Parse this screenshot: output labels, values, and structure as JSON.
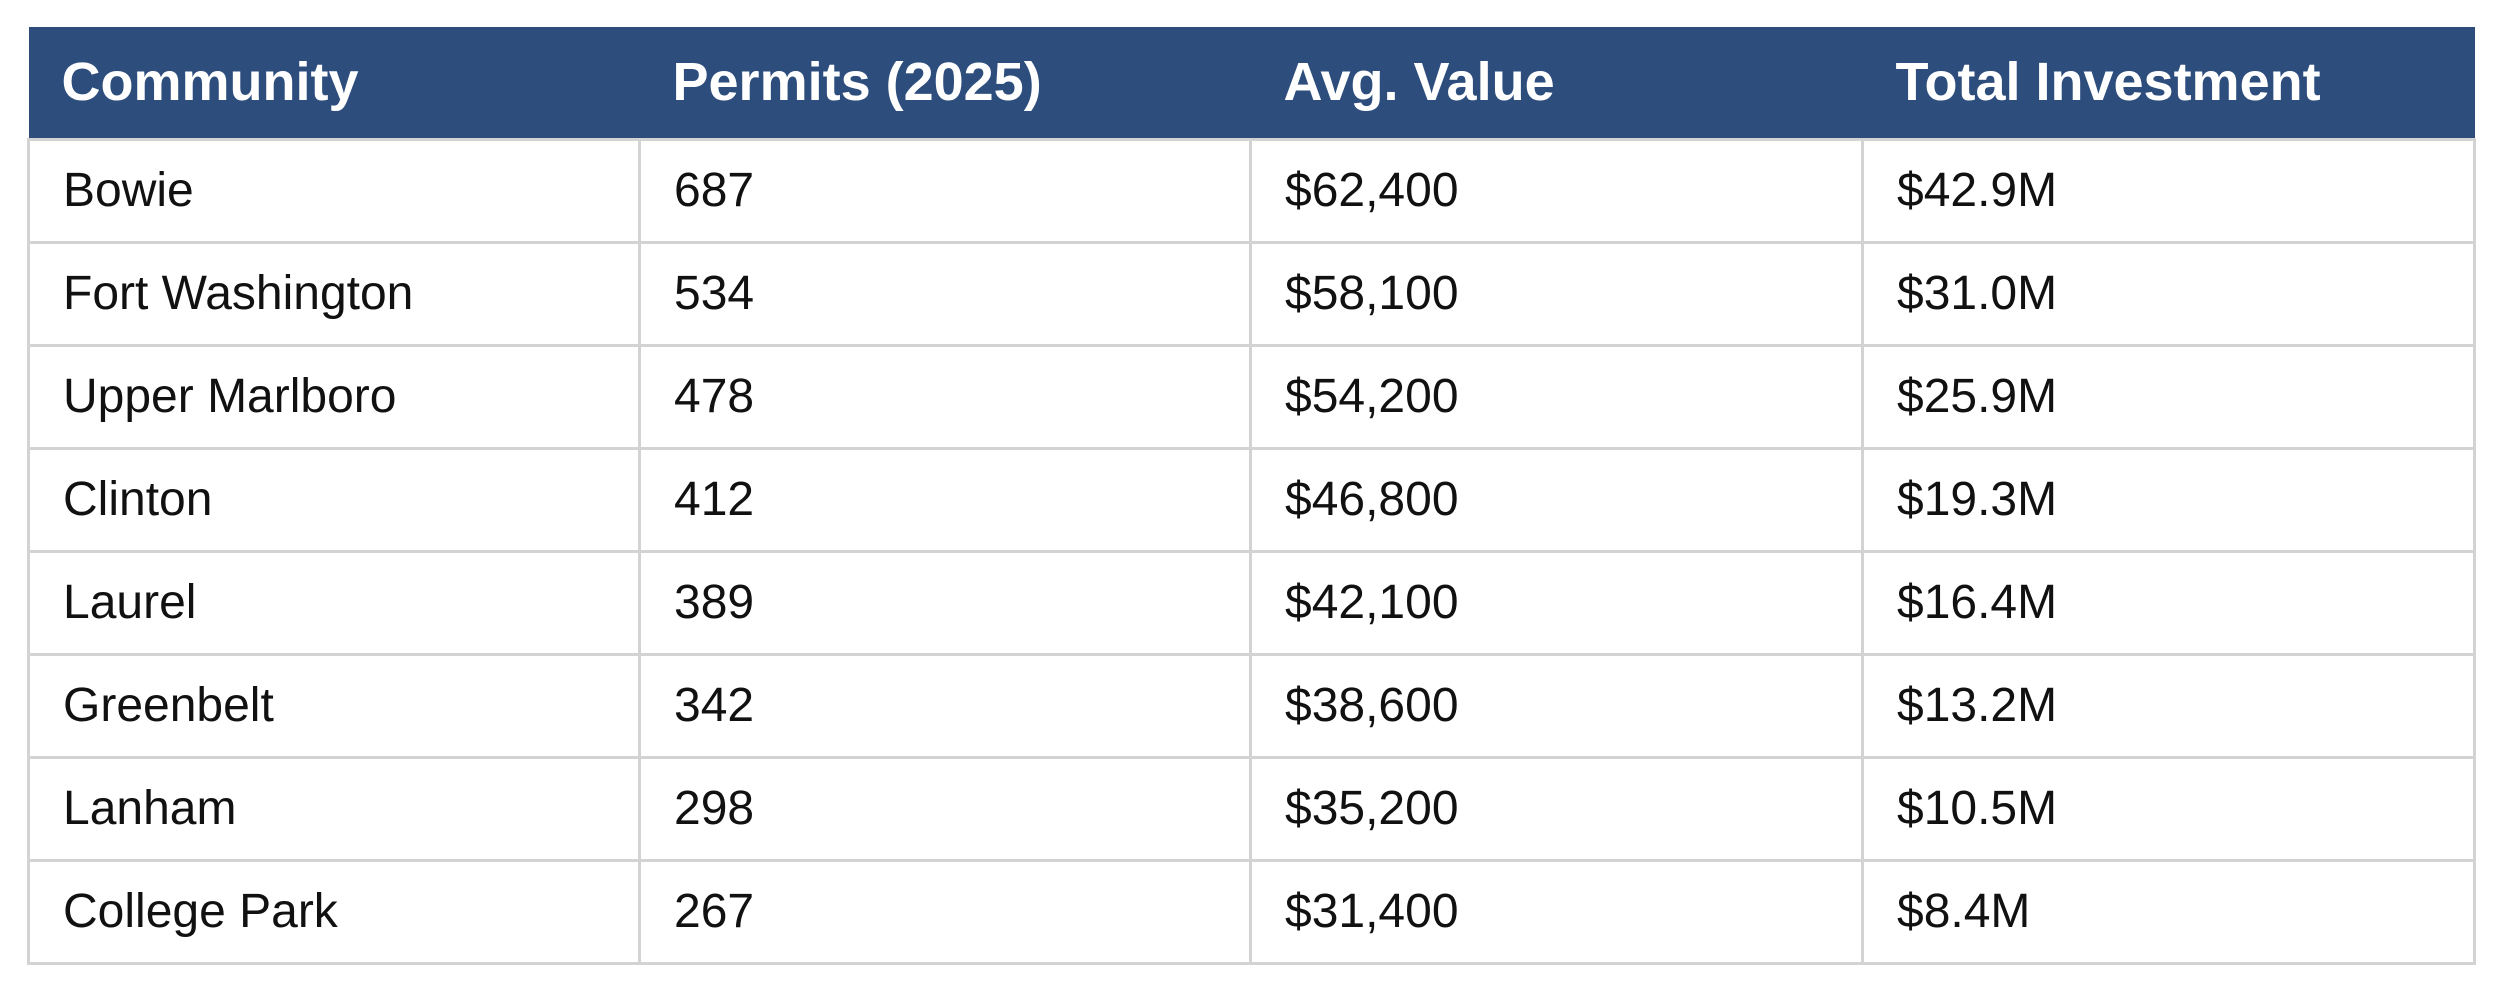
{
  "table": {
    "headers": [
      "Community",
      "Permits (2025)",
      "Avg. Value",
      "Total Investment"
    ],
    "rows": [
      [
        "Bowie",
        "687",
        "$62,400",
        "$42.9M"
      ],
      [
        "Fort Washington",
        "534",
        "$58,100",
        "$31.0M"
      ],
      [
        "Upper Marlboro",
        "478",
        "$54,200",
        "$25.9M"
      ],
      [
        "Clinton",
        "412",
        "$46,800",
        "$19.3M"
      ],
      [
        "Laurel",
        "389",
        "$42,100",
        "$16.4M"
      ],
      [
        "Greenbelt",
        "342",
        "$38,600",
        "$13.2M"
      ],
      [
        "Lanham",
        "298",
        "$35,200",
        "$10.5M"
      ],
      [
        "College Park",
        "267",
        "$31,400",
        "$8.4M"
      ]
    ]
  },
  "colors": {
    "header_background": "#2d4d7d",
    "header_text": "#ffffff",
    "grid_line": "#d3d3d3"
  }
}
